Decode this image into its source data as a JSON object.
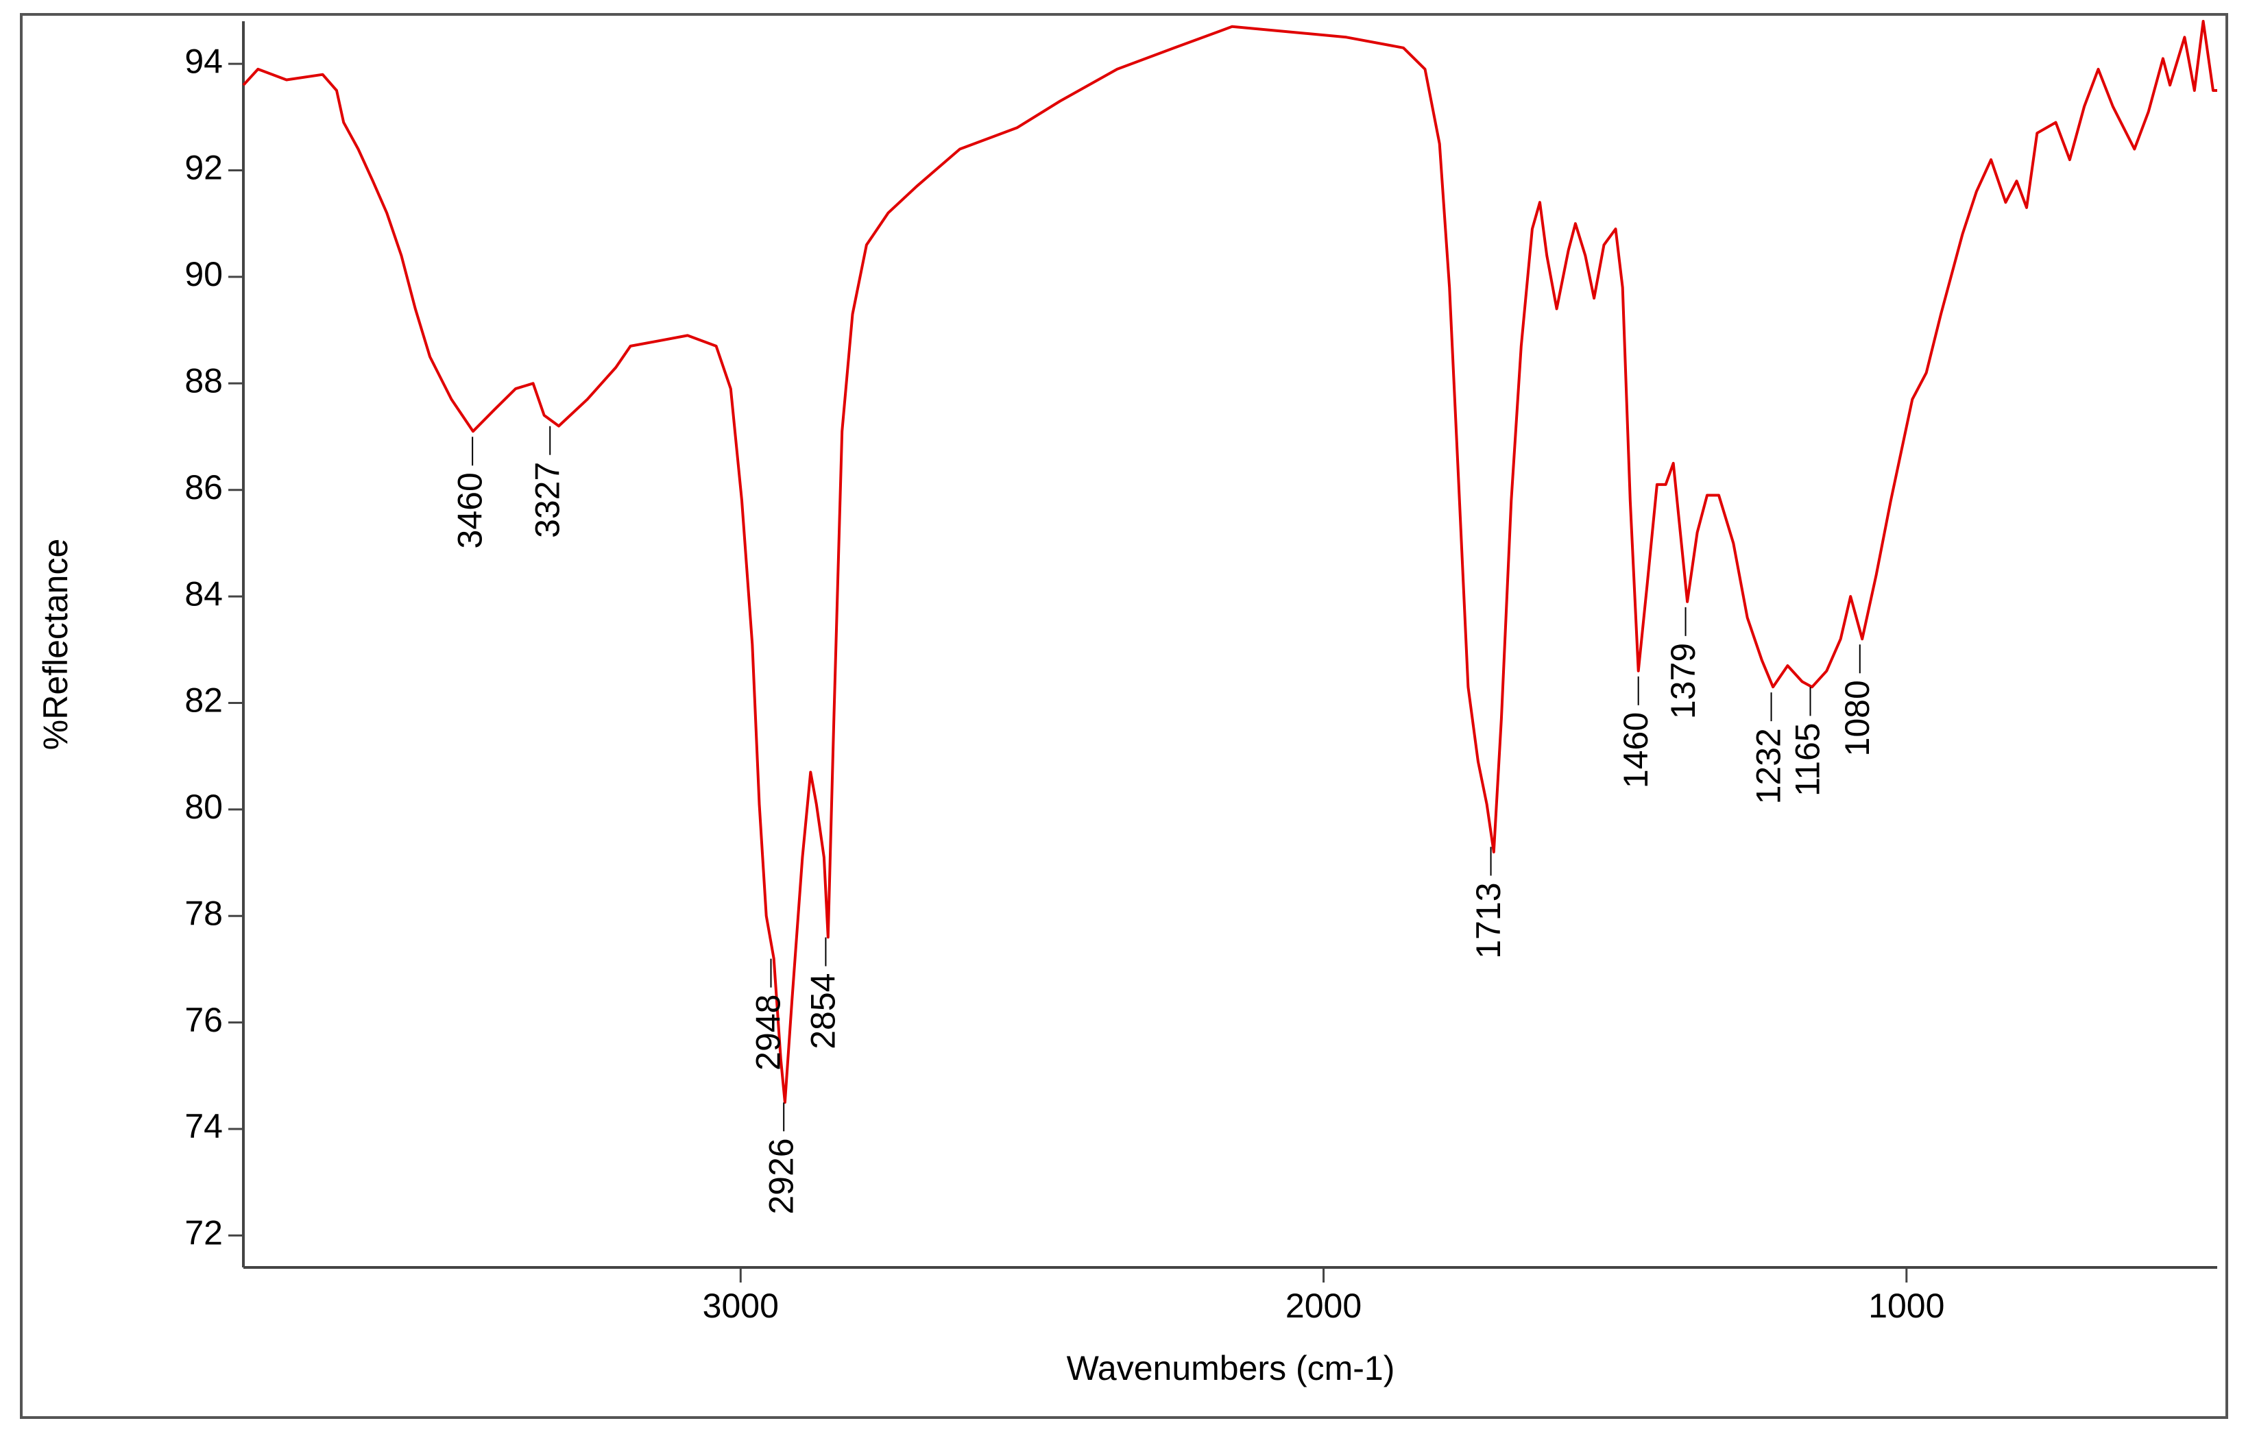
{
  "chart_data": {
    "type": "line",
    "xlabel": "Wavenumbers (cm-1)",
    "ylabel": "%Reflectance",
    "xlim": [
      3853,
      467
    ],
    "ylim": [
      71.4,
      94.8
    ],
    "xticks": [
      3000,
      2000,
      1000
    ],
    "yticks": [
      72,
      74,
      76,
      78,
      80,
      82,
      84,
      86,
      88,
      90,
      92,
      94
    ],
    "color": "#e00000",
    "x": [
      3853,
      3828,
      3779,
      3717,
      3693,
      3681,
      3656,
      3631,
      3607,
      3582,
      3558,
      3533,
      3496,
      3459,
      3423,
      3386,
      3356,
      3337,
      3312,
      3263,
      3214,
      3189,
      3140,
      3091,
      3042,
      3017,
      2998,
      2980,
      2968,
      2956,
      2943,
      2931,
      2924,
      2912,
      2894,
      2880,
      2870,
      2857,
      2850,
      2840,
      2826,
      2808,
      2784,
      2747,
      2698,
      2624,
      2526,
      2452,
      2354,
      2256,
      2157,
      2059,
      1961,
      1863,
      1826,
      1801,
      1784,
      1769,
      1752,
      1735,
      1720,
      1708,
      1695,
      1678,
      1661,
      1642,
      1629,
      1617,
      1600,
      1580,
      1568,
      1551,
      1536,
      1519,
      1499,
      1487,
      1474,
      1460,
      1445,
      1428,
      1413,
      1400,
      1388,
      1376,
      1359,
      1342,
      1322,
      1297,
      1273,
      1248,
      1229,
      1204,
      1179,
      1162,
      1137,
      1113,
      1096,
      1076,
      1052,
      1027,
      990,
      966,
      941,
      904,
      880,
      855,
      830,
      811,
      794,
      776,
      744,
      720,
      695,
      671,
      646,
      609,
      585,
      560,
      548,
      523,
      506,
      491,
      474,
      467
    ],
    "values": [
      93.6,
      93.9,
      93.7,
      93.8,
      93.5,
      92.9,
      92.4,
      91.8,
      91.2,
      90.4,
      89.4,
      88.5,
      87.7,
      87.1,
      87.5,
      87.9,
      88.0,
      87.4,
      87.2,
      87.7,
      88.3,
      88.7,
      88.8,
      88.9,
      88.7,
      87.9,
      85.8,
      83.1,
      80.1,
      78.0,
      77.2,
      75.3,
      74.5,
      76.4,
      79.1,
      80.7,
      80.1,
      79.1,
      77.6,
      81.7,
      87.1,
      89.3,
      90.6,
      91.2,
      91.7,
      92.4,
      92.8,
      93.3,
      93.9,
      94.3,
      94.7,
      94.6,
      94.5,
      94.3,
      93.9,
      92.5,
      89.8,
      86.3,
      82.3,
      80.9,
      80.1,
      79.2,
      81.7,
      85.8,
      88.7,
      90.9,
      91.4,
      90.4,
      89.4,
      90.5,
      91.0,
      90.4,
      89.6,
      90.6,
      90.9,
      89.8,
      85.8,
      82.6,
      84.2,
      86.1,
      86.1,
      86.5,
      85.2,
      83.9,
      85.2,
      85.9,
      85.9,
      85.0,
      83.6,
      82.8,
      82.3,
      82.7,
      82.4,
      82.3,
      82.6,
      83.2,
      84.0,
      83.2,
      84.4,
      85.8,
      87.7,
      88.2,
      89.3,
      90.8,
      91.6,
      92.2,
      91.4,
      91.8,
      91.3,
      92.7,
      92.9,
      92.2,
      93.2,
      93.9,
      93.2,
      92.4,
      93.1,
      94.1,
      93.6,
      94.5,
      93.5,
      94.8,
      93.5,
      93.5
    ],
    "peaks": [
      {
        "x": 3460,
        "y": 87.1
      },
      {
        "x": 3327,
        "y": 87.3
      },
      {
        "x": 2948,
        "y": 77.3
      },
      {
        "x": 2926,
        "y": 74.6
      },
      {
        "x": 2854,
        "y": 77.7
      },
      {
        "x": 1713,
        "y": 79.4
      },
      {
        "x": 1460,
        "y": 82.6
      },
      {
        "x": 1379,
        "y": 83.9
      },
      {
        "x": 1232,
        "y": 82.3
      },
      {
        "x": 1165,
        "y": 82.4
      },
      {
        "x": 1080,
        "y": 83.2
      }
    ]
  }
}
